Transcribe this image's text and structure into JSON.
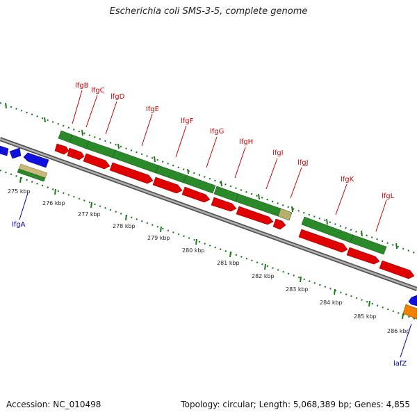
{
  "title": "Escherichia coli SMS-3-5, complete genome",
  "footer": {
    "accession": "Accession: NC_010498",
    "summary": "Topology: circular; Length: 5,068,389 bp; Genes: 4,855"
  },
  "colors": {
    "forward_cds": "#e00000",
    "forward_gene": "#2a8a2a",
    "reverse_cds": "#1010e0",
    "other_feature": "#c8b87a",
    "orange_feature": "#f08000",
    "label_red": "#cc0000",
    "label_blue": "#0000aa",
    "backbone": "#888888",
    "tick_green": "#1f7a1f"
  },
  "gene_labels": [
    {
      "name": "lfgB",
      "color": "red"
    },
    {
      "name": "lfgC",
      "color": "red"
    },
    {
      "name": "lfgD",
      "color": "red"
    },
    {
      "name": "lfgE",
      "color": "red"
    },
    {
      "name": "lfgF",
      "color": "red"
    },
    {
      "name": "lfgG",
      "color": "red"
    },
    {
      "name": "lfgH",
      "color": "red"
    },
    {
      "name": "lfgI",
      "color": "red"
    },
    {
      "name": "lfgJ",
      "color": "red"
    },
    {
      "name": "lfgK",
      "color": "red"
    },
    {
      "name": "lfgL",
      "color": "red"
    },
    {
      "name": "lfgA",
      "color": "blue"
    },
    {
      "name": "lafZ",
      "color": "blue"
    }
  ],
  "tick_labels": [
    "275 kbp",
    "276 kbp",
    "277 kbp",
    "278 kbp",
    "279 kbp",
    "280 kbp",
    "281 kbp",
    "282 kbp",
    "283 kbp",
    "284 kbp",
    "285 kbp",
    "286 kbp"
  ]
}
